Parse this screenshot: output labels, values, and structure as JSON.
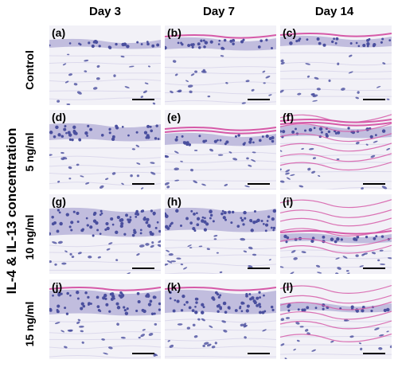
{
  "columns": [
    "Day 3",
    "Day 7",
    "Day 14"
  ],
  "rows": [
    "Control",
    "5 ng/ml",
    "10 ng/ml",
    "15 ng/ml"
  ],
  "side_label": "IL-4 & IL-13 concentration",
  "panels": [
    "(a)",
    "(b)",
    "(c)",
    "(d)",
    "(e)",
    "(f)",
    "(g)",
    "(h)",
    "(i)",
    "(j)",
    "(k)",
    "(l)"
  ],
  "stain_colors": {
    "background": "#f2f1f7",
    "nuclei": "#4a4f9e",
    "keratin": "#d65aa8",
    "tissue": "#b9b4d9"
  }
}
